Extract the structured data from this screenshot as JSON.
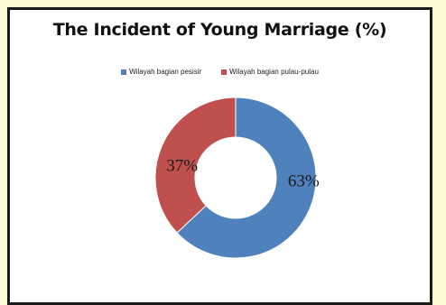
{
  "chart_data": {
    "type": "pie",
    "subtype": "donut",
    "title": "The Incident of Young Marriage (%)",
    "categories": [
      "Wilayah bagian pesisir",
      "Wilayah bagian pulau-pulau"
    ],
    "values": [
      63,
      37
    ],
    "labels": [
      "63%",
      "37%"
    ],
    "colors": [
      "#4f81bd",
      "#c0504d"
    ],
    "legend_position": "top"
  },
  "background_color": "#fdf9d5"
}
